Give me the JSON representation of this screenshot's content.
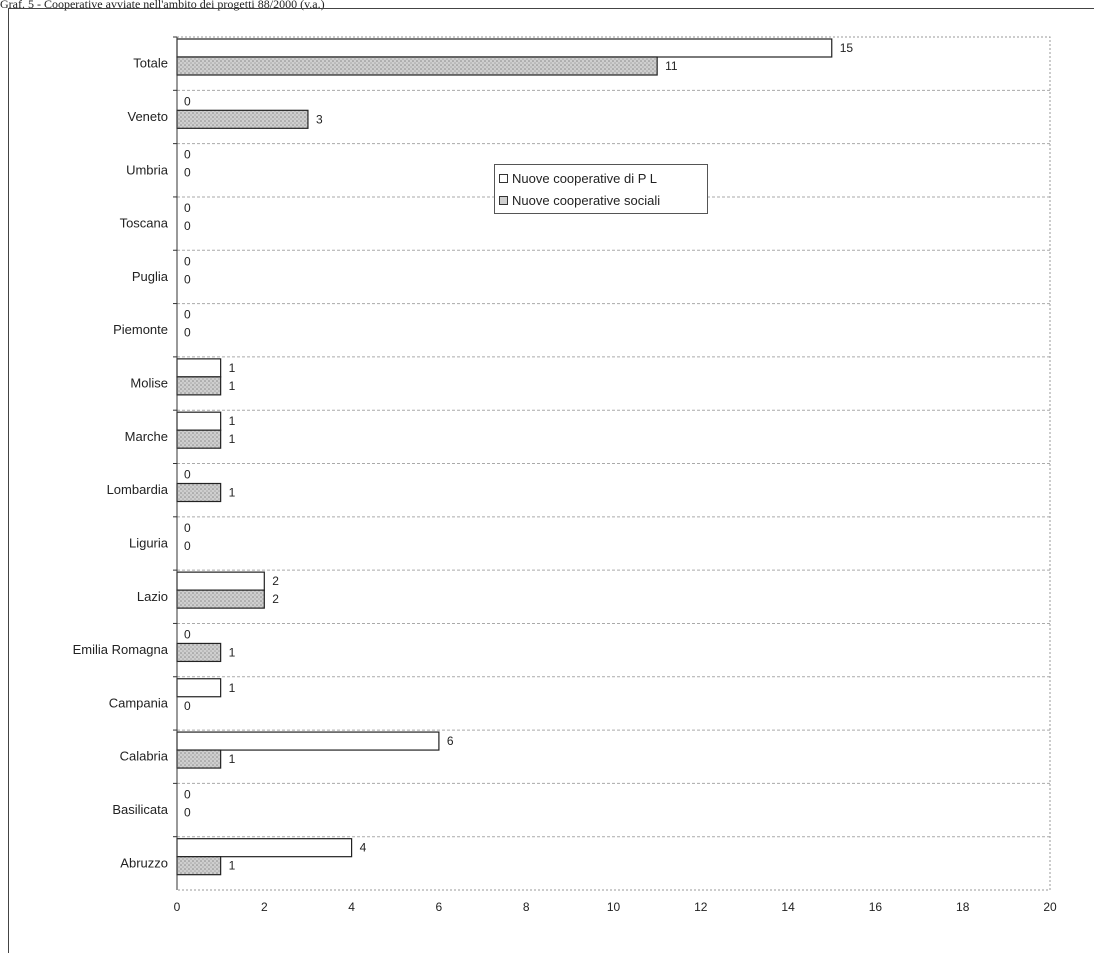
{
  "page_title": "Graf. 5 - Cooperative avviate nell'ambito dei progetti 88/2000 (v.a.)",
  "colors": {
    "series_1": "#ffffff",
    "series_2": "#cfcfcf",
    "stroke": "#222222"
  },
  "chart_data": {
    "type": "bar",
    "orientation": "horizontal",
    "title": "",
    "xlabel": "",
    "ylabel": "",
    "categories": [
      "Totale",
      "Veneto",
      "Umbria",
      "Toscana",
      "Puglia",
      "Piemonte",
      "Molise",
      "Marche",
      "Lombardia",
      "Liguria",
      "Lazio",
      "Emilia Romagna",
      "Campania",
      "Calabria",
      "Basilicata",
      "Abruzzo"
    ],
    "series": [
      {
        "name": "Nuove cooperative di P L",
        "values": [
          15,
          0,
          0,
          0,
          0,
          0,
          1,
          1,
          0,
          0,
          2,
          0,
          1,
          6,
          0,
          4
        ]
      },
      {
        "name": "Nuove cooperative sociali",
        "values": [
          11,
          3,
          0,
          0,
          0,
          0,
          1,
          1,
          1,
          0,
          2,
          1,
          0,
          1,
          0,
          1
        ]
      }
    ],
    "xlim": [
      0,
      20
    ],
    "xticks": [
      0,
      2,
      4,
      6,
      8,
      10,
      12,
      14,
      16,
      18,
      20
    ],
    "grid": true,
    "legend_position": "top-center"
  }
}
